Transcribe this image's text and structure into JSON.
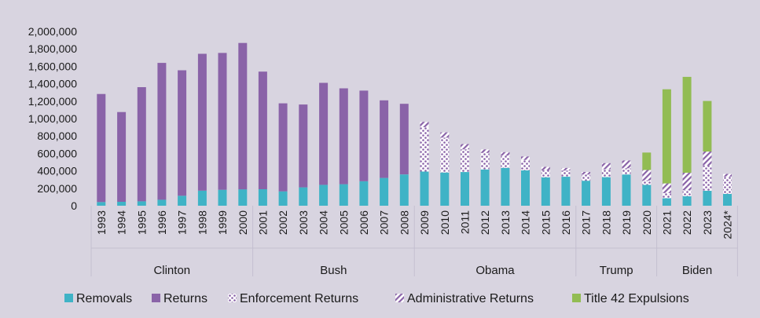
{
  "chart_data": {
    "type": "bar",
    "stacked": true,
    "title": "",
    "xlabel": "",
    "ylabel": "",
    "ylim": [
      0,
      2000000
    ],
    "y_ticks": [
      "0",
      "200,000",
      "400,000",
      "600,000",
      "800,000",
      "1,000,000",
      "1,200,000",
      "1,400,000",
      "1,600,000",
      "1,800,000",
      "2,000,000"
    ],
    "grid": false,
    "legend_position": "bottom",
    "categories": [
      "1993",
      "1994",
      "1995",
      "1996",
      "1997",
      "1998",
      "1999",
      "2000",
      "2001",
      "2002",
      "2003",
      "2004",
      "2005",
      "2006",
      "2007",
      "2008",
      "2009",
      "2010",
      "2011",
      "2012",
      "2013",
      "2014",
      "2015",
      "2016",
      "2017",
      "2018",
      "2019",
      "2020",
      "2021",
      "2022",
      "2023",
      "2024*"
    ],
    "groups": [
      {
        "label": "Clinton",
        "start": 0,
        "end": 7
      },
      {
        "label": "Bush",
        "start": 8,
        "end": 15
      },
      {
        "label": "Obama",
        "start": 16,
        "end": 23
      },
      {
        "label": "Trump",
        "start": 24,
        "end": 27
      },
      {
        "label": "Biden",
        "start": 28,
        "end": 31
      }
    ],
    "series": [
      {
        "name": "Removals",
        "color": "#3fb3c6",
        "pattern": "solid",
        "values": [
          42000,
          45000,
          50000,
          69000,
          114000,
          173000,
          183000,
          188000,
          189000,
          165000,
          211000,
          240000,
          247000,
          281000,
          319000,
          359000,
          392000,
          381000,
          387000,
          416000,
          434000,
          405000,
          326000,
          333000,
          287000,
          328000,
          359000,
          240000,
          86000,
          108000,
          172000,
          135000
        ]
      },
      {
        "name": "Returns",
        "color": "#8a63a8",
        "pattern": "solid",
        "values": [
          1240000,
          1030000,
          1310000,
          1570000,
          1440000,
          1570000,
          1570000,
          1680000,
          1350000,
          1010000,
          950000,
          1170000,
          1100000,
          1040000,
          890000,
          810000,
          0,
          0,
          0,
          0,
          0,
          0,
          0,
          0,
          0,
          0,
          0,
          0,
          0,
          0,
          0,
          0
        ]
      },
      {
        "name": "Enforcement Returns",
        "color": "#8a63a8",
        "pattern": "dots",
        "values": [
          0,
          0,
          0,
          0,
          0,
          0,
          0,
          0,
          0,
          0,
          0,
          0,
          0,
          0,
          0,
          0,
          510000,
          400000,
          260000,
          190000,
          140000,
          120000,
          80000,
          70000,
          70000,
          90000,
          70000,
          50000,
          60000,
          70000,
          290000,
          200000
        ]
      },
      {
        "name": "Administrative Returns",
        "color": "#8a63a8",
        "pattern": "hatch",
        "values": [
          0,
          0,
          0,
          0,
          0,
          0,
          0,
          0,
          0,
          0,
          0,
          0,
          0,
          0,
          0,
          0,
          60000,
          60000,
          60000,
          40000,
          40000,
          40000,
          40000,
          30000,
          30000,
          70000,
          90000,
          120000,
          110000,
          200000,
          160000,
          30000
        ]
      },
      {
        "name": "Title 42 Expulsions",
        "color": "#92bc53",
        "pattern": "solid",
        "values": [
          0,
          0,
          0,
          0,
          0,
          0,
          0,
          0,
          0,
          0,
          0,
          0,
          0,
          0,
          0,
          0,
          0,
          0,
          0,
          0,
          0,
          0,
          0,
          0,
          0,
          0,
          0,
          200000,
          1080000,
          1100000,
          580000,
          0
        ]
      }
    ]
  }
}
